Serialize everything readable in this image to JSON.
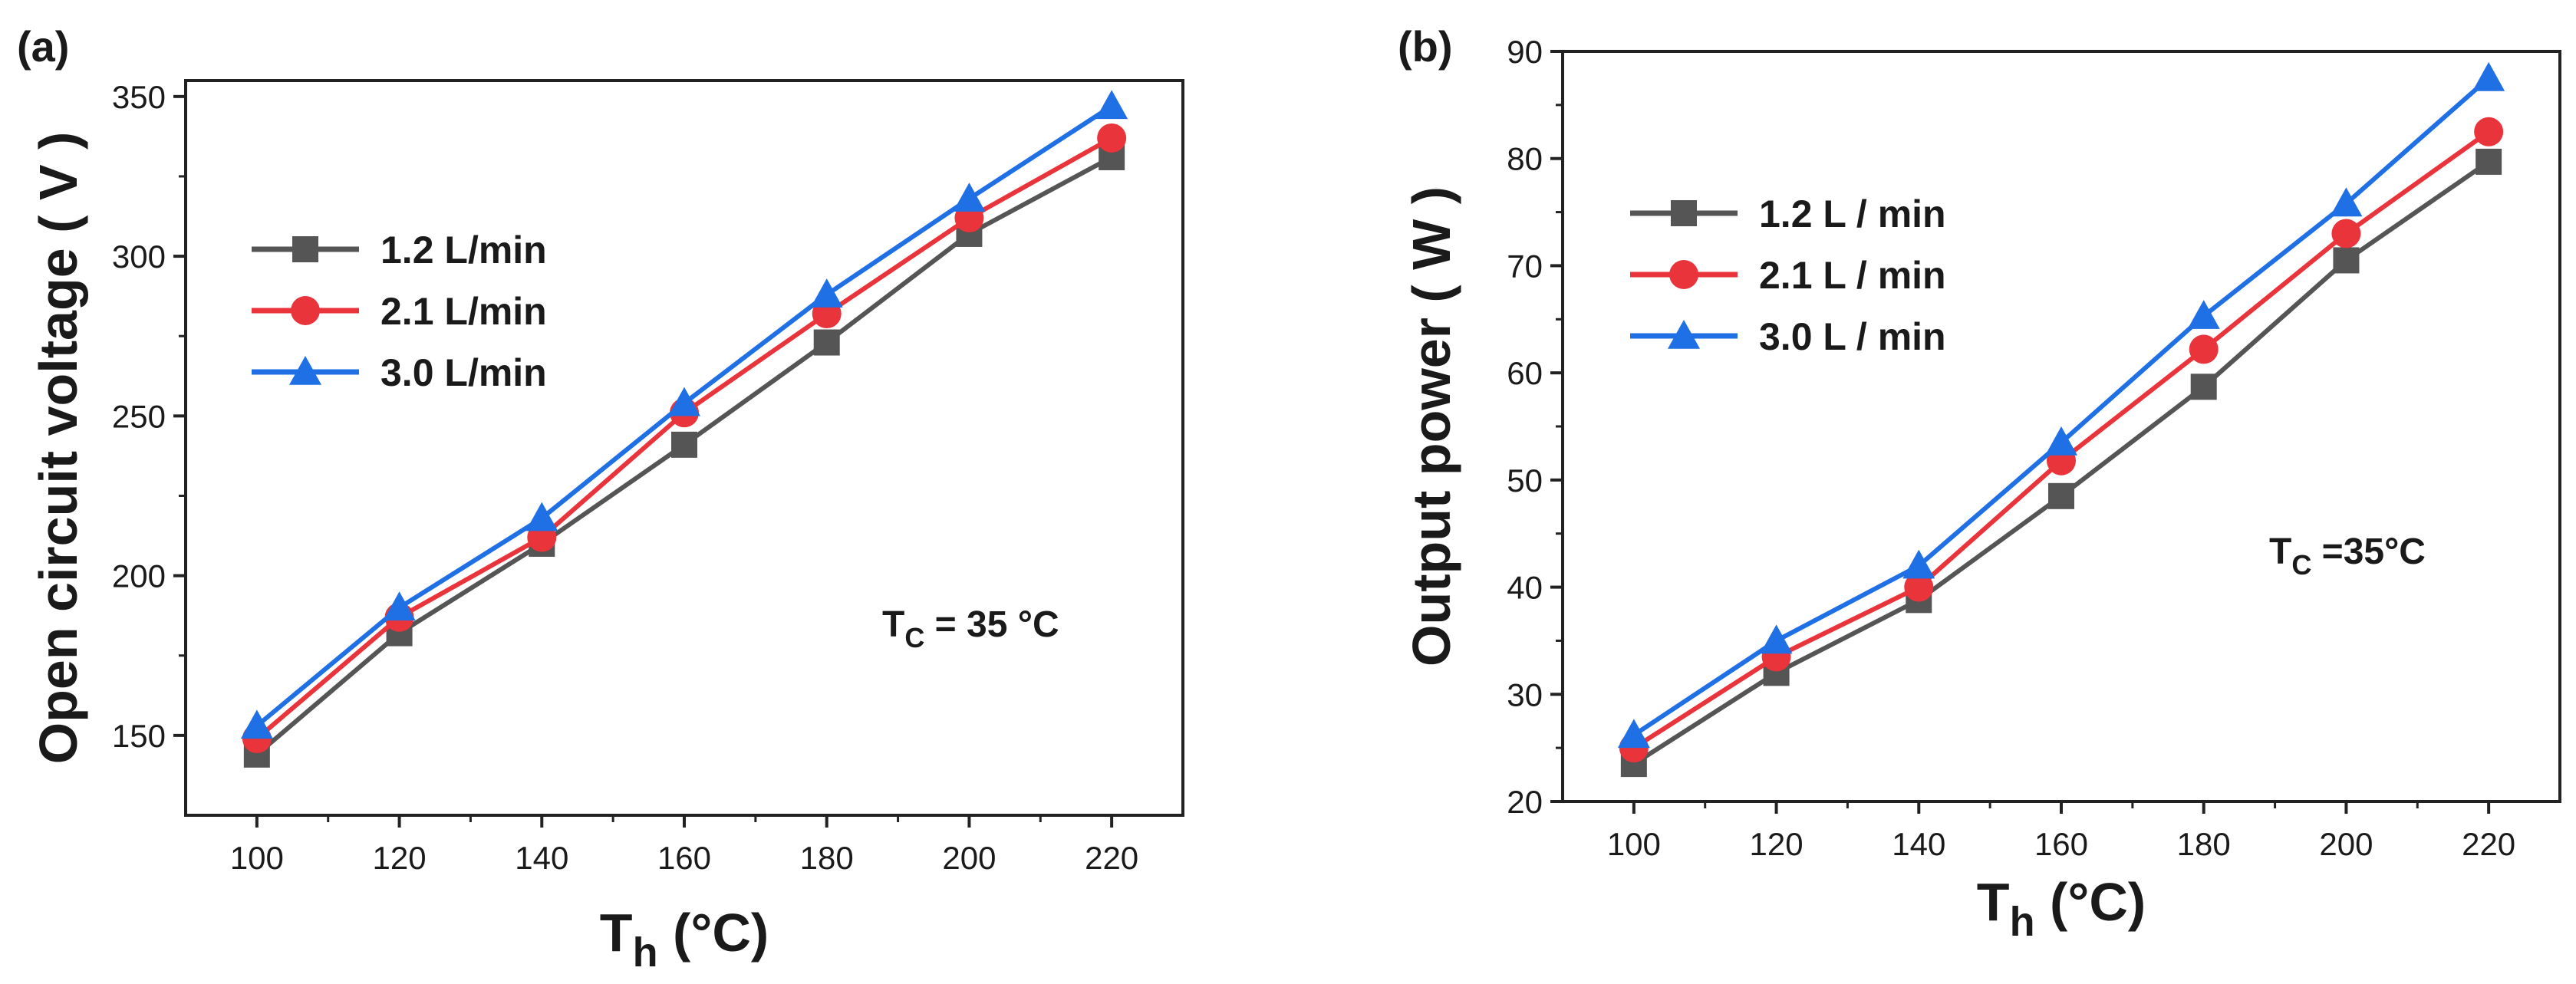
{
  "chart_data": [
    {
      "type": "line",
      "panel_label": "(a)",
      "xlabel_main": "T",
      "xlabel_sub": "h",
      "xlabel_unit": " (°C)",
      "ylabel": "Open circuit voltage ( V )",
      "x": [
        100,
        120,
        140,
        160,
        180,
        200,
        220
      ],
      "xlim": [
        90,
        230
      ],
      "ylim": [
        125,
        355
      ],
      "xticks": [
        100,
        120,
        140,
        160,
        180,
        200,
        220
      ],
      "yticks": [
        150,
        200,
        250,
        300,
        350
      ],
      "legend_position": "upper-left",
      "annotation": {
        "main": "T",
        "sub": "C",
        "rest": " = 35 °C"
      },
      "series": [
        {
          "name": "1.2 L/min",
          "color": "#555555",
          "marker": "square",
          "values": [
            144,
            182,
            210,
            241,
            273,
            307,
            331
          ]
        },
        {
          "name": "2.1 L/min",
          "color": "#e8343a",
          "marker": "circle",
          "values": [
            149,
            187,
            212,
            251,
            282,
            312,
            337
          ]
        },
        {
          "name": "3.0 L/min",
          "color": "#1f6fe5",
          "marker": "triangle",
          "values": [
            153,
            190,
            218,
            254,
            288,
            318,
            347
          ]
        }
      ]
    },
    {
      "type": "line",
      "panel_label": "(b)",
      "xlabel_main": "T",
      "xlabel_sub": "h",
      "xlabel_unit": " (°C)",
      "ylabel": "Output power ( W )",
      "x": [
        100,
        120,
        140,
        160,
        180,
        200,
        220
      ],
      "xlim": [
        90,
        230
      ],
      "ylim": [
        20,
        90
      ],
      "xticks": [
        100,
        120,
        140,
        160,
        180,
        200,
        220
      ],
      "yticks": [
        20,
        30,
        40,
        50,
        60,
        70,
        80,
        90
      ],
      "legend_position": "upper-left",
      "annotation": {
        "main": "T",
        "sub": "C",
        "rest": " =35°C"
      },
      "series": [
        {
          "name": "1.2 L / min",
          "color": "#555555",
          "marker": "square",
          "values": [
            23.5,
            32,
            38.8,
            48.5,
            58.7,
            70.5,
            79.7
          ]
        },
        {
          "name": "2.1 L / min",
          "color": "#e8343a",
          "marker": "circle",
          "values": [
            25,
            33.5,
            40,
            51.8,
            62.2,
            73,
            82.5
          ]
        },
        {
          "name": "3.0 L / min",
          "color": "#1f6fe5",
          "marker": "triangle",
          "values": [
            26.2,
            35,
            42,
            53.5,
            65.3,
            75.8,
            87.5
          ]
        }
      ]
    }
  ]
}
